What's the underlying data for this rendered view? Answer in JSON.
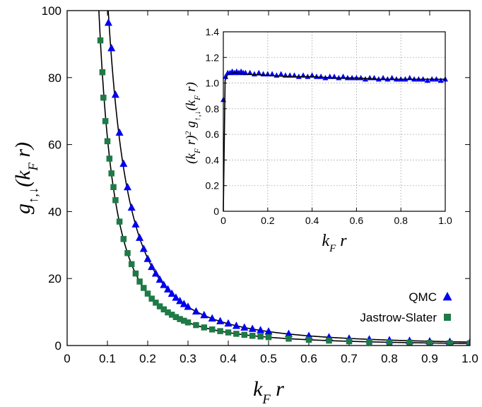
{
  "chart_data": [
    {
      "id": "main",
      "type": "scatter",
      "title": "",
      "xlabel": "k_F r",
      "ylabel": "g_{↑,↓}(k_F r)",
      "xlim": [
        0,
        1.0
      ],
      "ylim": [
        0,
        100
      ],
      "xticks": [
        "0",
        "0.1",
        "0.2",
        "0.3",
        "0.4",
        "0.5",
        "0.6",
        "0.7",
        "0.8",
        "0.9",
        "1.0"
      ],
      "yticks": [
        "0",
        "20",
        "40",
        "60",
        "80",
        "100"
      ],
      "grid": false,
      "legend_position": "bottom-right",
      "series": [
        {
          "name": "QMC",
          "marker": "triangle",
          "color": "#0000ee",
          "fit_constant": 1.04,
          "x": [
            0.1025,
            0.11,
            0.12,
            0.13,
            0.14,
            0.15,
            0.16,
            0.17,
            0.18,
            0.19,
            0.2,
            0.21,
            0.22,
            0.23,
            0.24,
            0.25,
            0.26,
            0.27,
            0.28,
            0.29,
            0.3,
            0.32,
            0.34,
            0.36,
            0.38,
            0.4,
            0.42,
            0.44,
            0.46,
            0.48,
            0.5,
            0.55,
            0.6,
            0.65,
            0.7,
            0.75,
            0.8,
            0.85,
            0.9,
            0.95,
            1.0
          ],
          "y": [
            96.4,
            88.8,
            74.9,
            63.6,
            54.3,
            47.3,
            41.2,
            36.2,
            32.2,
            28.9,
            25.9,
            23.5,
            21.5,
            19.7,
            18.1,
            16.8,
            15.5,
            14.3,
            13.3,
            12.4,
            11.6,
            10.2,
            9.1,
            8.1,
            7.3,
            6.6,
            5.9,
            5.4,
            5.0,
            4.6,
            4.2,
            3.5,
            2.9,
            2.5,
            2.1,
            1.85,
            1.62,
            1.44,
            1.28,
            1.15,
            1.03
          ]
        },
        {
          "name": "Jastrow-Slater",
          "marker": "square",
          "color": "#1e7a46",
          "fit_constant": 0.62,
          "x": [
            0.0825,
            0.0875,
            0.09,
            0.095,
            0.1,
            0.105,
            0.11,
            0.115,
            0.12,
            0.13,
            0.14,
            0.15,
            0.16,
            0.17,
            0.18,
            0.19,
            0.2,
            0.21,
            0.22,
            0.23,
            0.24,
            0.25,
            0.26,
            0.27,
            0.28,
            0.29,
            0.3,
            0.32,
            0.34,
            0.36,
            0.38,
            0.4,
            0.42,
            0.44,
            0.46,
            0.48,
            0.5,
            0.55,
            0.6,
            0.65,
            0.7,
            0.75,
            0.8,
            0.85,
            0.9,
            0.95,
            1.0
          ],
          "y": [
            91.1,
            81.6,
            74.0,
            67.0,
            61.0,
            55.8,
            51.4,
            47.3,
            43.4,
            37.0,
            31.8,
            27.6,
            24.3,
            21.5,
            19.1,
            17.2,
            15.5,
            14.0,
            12.8,
            11.7,
            10.8,
            9.9,
            9.2,
            8.5,
            7.9,
            7.4,
            6.9,
            6.1,
            5.4,
            4.8,
            4.3,
            3.9,
            3.5,
            3.2,
            2.9,
            2.7,
            2.5,
            2.05,
            1.72,
            1.47,
            1.27,
            1.1,
            0.97,
            0.86,
            0.77,
            0.69,
            0.62
          ]
        }
      ],
      "fit_line_color": "#000000"
    },
    {
      "id": "inset",
      "type": "scatter",
      "title": "",
      "xlabel": "k_F r",
      "ylabel": "(k_F r)^2 g_{↑,↓}(k_F r)",
      "xlim": [
        0,
        1.0
      ],
      "ylim": [
        0,
        1.4
      ],
      "xticks": [
        "0",
        "0.2",
        "0.4",
        "0.6",
        "0.8",
        "1.0"
      ],
      "yticks": [
        "0",
        "0.2",
        "0.4",
        "0.6",
        "0.8",
        "1.0",
        "1.2",
        "1.4"
      ],
      "grid": true,
      "series": [
        {
          "name": "QMC",
          "marker": "triangle",
          "color": "#0000ee",
          "x": [
            0.0,
            0.01,
            0.02,
            0.03,
            0.04,
            0.05,
            0.06,
            0.07,
            0.08,
            0.09,
            0.1,
            0.12,
            0.14,
            0.16,
            0.18,
            0.2,
            0.22,
            0.24,
            0.26,
            0.28,
            0.3,
            0.32,
            0.34,
            0.36,
            0.38,
            0.4,
            0.42,
            0.44,
            0.46,
            0.48,
            0.5,
            0.52,
            0.54,
            0.56,
            0.58,
            0.6,
            0.62,
            0.64,
            0.66,
            0.68,
            0.7,
            0.72,
            0.74,
            0.76,
            0.78,
            0.8,
            0.82,
            0.84,
            0.86,
            0.88,
            0.9,
            0.92,
            0.94,
            0.96,
            0.98,
            1.0
          ],
          "y": [
            0.87,
            1.05,
            1.08,
            1.08,
            1.09,
            1.08,
            1.09,
            1.08,
            1.09,
            1.08,
            1.08,
            1.08,
            1.07,
            1.08,
            1.07,
            1.07,
            1.07,
            1.06,
            1.07,
            1.06,
            1.06,
            1.06,
            1.05,
            1.06,
            1.05,
            1.06,
            1.05,
            1.05,
            1.04,
            1.05,
            1.05,
            1.04,
            1.05,
            1.04,
            1.04,
            1.04,
            1.04,
            1.03,
            1.04,
            1.04,
            1.03,
            1.04,
            1.03,
            1.04,
            1.03,
            1.03,
            1.03,
            1.04,
            1.03,
            1.03,
            1.03,
            1.02,
            1.03,
            1.03,
            1.02,
            1.03
          ]
        }
      ],
      "fit_line": {
        "x": [
          0.0,
          0.008,
          0.02,
          0.05,
          0.1,
          0.2,
          0.3,
          0.4,
          0.5,
          0.6,
          0.7,
          0.8,
          0.9,
          1.0
        ],
        "y": [
          0.0,
          1.02,
          1.07,
          1.08,
          1.07,
          1.06,
          1.05,
          1.05,
          1.04,
          1.04,
          1.03,
          1.03,
          1.03,
          1.03
        ]
      }
    }
  ],
  "legend": {
    "entries": [
      "QMC",
      "Jastrow-Slater"
    ]
  }
}
